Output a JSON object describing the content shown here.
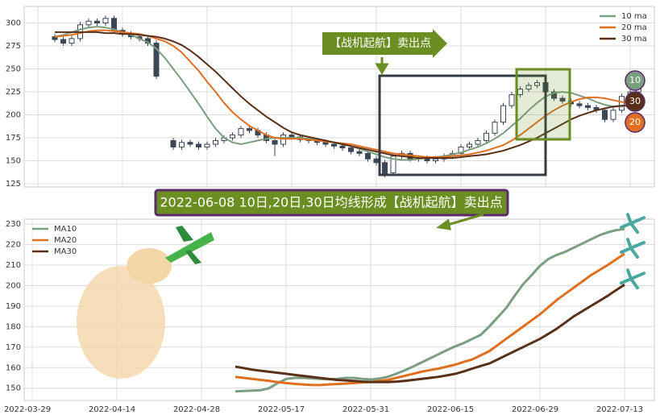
{
  "chart_data": [
    {
      "type": "candlestick",
      "open": [
        null,
        null,
        285,
        282,
        278,
        283,
        298,
        302,
        300,
        305,
        292,
        288,
        285,
        283,
        278,
        null,
        172,
        165,
        170,
        168,
        165,
        168,
        172,
        175,
        178,
        185,
        183,
        178,
        172,
        168,
        178,
        176,
        173,
        172,
        170,
        168,
        166,
        164,
        160,
        158,
        152,
        148,
        137,
        155,
        158,
        152,
        153,
        150,
        152,
        155,
        158,
        165,
        168,
        172,
        180,
        192,
        210,
        222,
        228,
        232,
        235,
        225,
        218,
        215,
        212,
        210,
        208,
        205,
        195,
        205,
        220,
        225
      ],
      "high": [
        null,
        null,
        288,
        285,
        286,
        301,
        305,
        305,
        308,
        308,
        295,
        291,
        288,
        286,
        281,
        null,
        175,
        173,
        173,
        171,
        171,
        175,
        178,
        181,
        188,
        188,
        186,
        181,
        175,
        181,
        181,
        179,
        176,
        175,
        173,
        171,
        169,
        167,
        163,
        161,
        155,
        151,
        158,
        161,
        161,
        156,
        156,
        155,
        158,
        161,
        168,
        171,
        175,
        183,
        195,
        213,
        225,
        231,
        235,
        238,
        238,
        228,
        221,
        218,
        215,
        213,
        211,
        208,
        208,
        223,
        238,
        231
      ],
      "low": [
        null,
        null,
        279,
        275,
        275,
        280,
        295,
        297,
        297,
        289,
        285,
        282,
        280,
        275,
        239,
        null,
        162,
        162,
        165,
        162,
        162,
        165,
        169,
        172,
        175,
        180,
        175,
        169,
        155,
        165,
        173,
        170,
        169,
        167,
        165,
        163,
        161,
        157,
        155,
        149,
        145,
        132,
        134,
        152,
        149,
        149,
        147,
        147,
        149,
        152,
        155,
        162,
        165,
        169,
        177,
        189,
        207,
        219,
        225,
        229,
        222,
        215,
        212,
        209,
        207,
        205,
        202,
        192,
        192,
        202,
        217,
        222
      ],
      "close": [
        null,
        null,
        282,
        278,
        283,
        298,
        302,
        300,
        305,
        292,
        288,
        285,
        283,
        278,
        242,
        null,
        165,
        170,
        168,
        165,
        168,
        172,
        175,
        178,
        185,
        183,
        178,
        172,
        168,
        178,
        176,
        173,
        172,
        170,
        168,
        166,
        164,
        160,
        158,
        152,
        148,
        135,
        155,
        158,
        152,
        153,
        150,
        152,
        155,
        158,
        165,
        168,
        172,
        180,
        192,
        210,
        222,
        228,
        232,
        235,
        225,
        218,
        215,
        212,
        210,
        208,
        205,
        195,
        205,
        220,
        225,
        228
      ],
      "candle_color": "#3b4657",
      "series": [
        {
          "name": "10 ma",
          "color": "#7a9e80",
          "values": [
            null,
            null,
            285,
            287,
            290,
            293,
            295,
            296,
            295,
            293,
            290,
            287,
            283,
            279,
            272,
            262,
            250,
            238,
            225,
            212,
            198,
            185,
            175,
            170,
            168,
            170,
            172,
            174,
            175,
            175,
            175,
            175,
            174,
            173,
            171,
            170,
            168,
            166,
            163,
            160,
            157,
            154,
            152,
            151,
            151,
            152,
            153,
            154,
            155,
            157,
            159,
            162,
            165,
            169,
            174,
            180,
            188,
            196,
            205,
            213,
            220,
            224,
            225,
            224,
            221,
            218,
            214,
            211,
            209,
            209,
            211,
            214
          ]
        },
        {
          "name": "20 ma",
          "color": "#e07020",
          "values": [
            null,
            null,
            285,
            286,
            287,
            289,
            291,
            292,
            292,
            291,
            290,
            289,
            288,
            286,
            283,
            280,
            275,
            268,
            258,
            248,
            236,
            225,
            213,
            203,
            195,
            188,
            183,
            178,
            175,
            174,
            174,
            174,
            173,
            172,
            171,
            170,
            169,
            168,
            166,
            164,
            162,
            160,
            158,
            157,
            156,
            155,
            154,
            154,
            154,
            155,
            156,
            157,
            159,
            161,
            164,
            167,
            172,
            178,
            185,
            192,
            199,
            205,
            210,
            214,
            217,
            219,
            219,
            218,
            216,
            214,
            213,
            213
          ]
        },
        {
          "name": "30 ma",
          "color": "#5a3018",
          "values": [
            null,
            null,
            290,
            290,
            290,
            290,
            290,
            290,
            289,
            289,
            288,
            288,
            287,
            286,
            285,
            283,
            280,
            276,
            270,
            263,
            255,
            247,
            238,
            229,
            220,
            212,
            205,
            198,
            192,
            186,
            181,
            178,
            176,
            174,
            172,
            170,
            168,
            166,
            164,
            162,
            160,
            158,
            156,
            155,
            154,
            153,
            153,
            153,
            153,
            153,
            154,
            155,
            156,
            157,
            159,
            161,
            164,
            167,
            171,
            175,
            180,
            185,
            190,
            195,
            199,
            202,
            205,
            207,
            209,
            210,
            210,
            211
          ]
        }
      ],
      "ylim": [
        121.5,
        318
      ],
      "yticks": [
        125,
        150,
        175,
        200,
        225,
        250,
        275,
        300
      ],
      "grid": true,
      "legend": "upper right",
      "annotation": "【战机起航】卖出点",
      "badges": [
        {
          "text": "10",
          "color": "#7a9e80"
        },
        {
          "text": "30",
          "color": "#5a3018"
        },
        {
          "text": "20",
          "color": "#e07020"
        }
      ]
    },
    {
      "type": "line",
      "categories": [
        "2022-03-29",
        null,
        null,
        null,
        null,
        null,
        null,
        null,
        null,
        null,
        "2022-04-14",
        null,
        null,
        null,
        null,
        null,
        null,
        null,
        null,
        null,
        "2022-04-28",
        null,
        null,
        null,
        null,
        null,
        null,
        null,
        null,
        null,
        "2022-05-17",
        null,
        null,
        null,
        null,
        null,
        null,
        null,
        null,
        null,
        "2022-05-31",
        null,
        null,
        null,
        null,
        null,
        null,
        null,
        null,
        null,
        "2022-06-15",
        null,
        null,
        null,
        null,
        null,
        null,
        null,
        null,
        null,
        "2022-06-29",
        null,
        null,
        null,
        null,
        null,
        null,
        null,
        null,
        null,
        "2022-07-13"
      ],
      "series": [
        {
          "name": "MA10",
          "color": "#7a9e80",
          "values": [
            null,
            null,
            null,
            null,
            null,
            null,
            null,
            null,
            null,
            null,
            null,
            null,
            null,
            null,
            null,
            null,
            null,
            null,
            null,
            null,
            null,
            null,
            null,
            null,
            148.4,
            148.6,
            148.8,
            149,
            150,
            152.5,
            154.5,
            155,
            155,
            154.8,
            154.5,
            154.3,
            154.5,
            155,
            155,
            154.5,
            154.2,
            154.7,
            155.5,
            157,
            158.6,
            160.5,
            162.5,
            164.5,
            166.5,
            168.5,
            170.4,
            172,
            174,
            176,
            180,
            184.5,
            189,
            195,
            200.6,
            205,
            209.6,
            213,
            215,
            216.5,
            218.5,
            220.5,
            222.5,
            224.5,
            226,
            227,
            227.6
          ]
        },
        {
          "name": "MA20",
          "color": "#e07020",
          "values": [
            null,
            null,
            null,
            null,
            null,
            null,
            null,
            null,
            null,
            null,
            null,
            null,
            null,
            null,
            null,
            null,
            null,
            null,
            null,
            null,
            null,
            null,
            null,
            null,
            155.5,
            155,
            154.5,
            154,
            153.5,
            153,
            152.5,
            152.1,
            151.8,
            151.6,
            151.5,
            151.8,
            152,
            152.2,
            152.5,
            152.8,
            153,
            153.5,
            154,
            155,
            156,
            157,
            158,
            158.8,
            159.5,
            160.5,
            161.5,
            162.8,
            164,
            166,
            168,
            171,
            174,
            177,
            180,
            183,
            186,
            189.5,
            193,
            196,
            199,
            202,
            205,
            207.5,
            210,
            212.8,
            215.5
          ]
        },
        {
          "name": "MA30",
          "color": "#5a3018",
          "values": [
            null,
            null,
            null,
            null,
            null,
            null,
            null,
            null,
            null,
            null,
            null,
            null,
            null,
            null,
            null,
            null,
            null,
            null,
            null,
            null,
            null,
            null,
            null,
            null,
            160.5,
            159.8,
            159,
            158.5,
            158,
            157.5,
            157,
            156.5,
            156,
            155.5,
            155,
            154.5,
            154,
            153.8,
            153.5,
            153.2,
            153,
            153,
            153,
            153.2,
            153.5,
            154,
            154.5,
            155,
            155.5,
            156.2,
            157,
            158.2,
            159.5,
            160.8,
            162,
            164,
            166,
            168,
            170,
            172,
            174,
            176.5,
            179,
            182,
            185,
            187.5,
            190,
            192.5,
            195,
            197.8,
            200.5
          ]
        }
      ],
      "ylim": [
        144,
        232.4
      ],
      "yticks": [
        150,
        160,
        170,
        180,
        190,
        200,
        210,
        220,
        230
      ],
      "grid": true,
      "legend": "upper left",
      "annotation": "2022-06-08 10日,20日,30日均线形成【战机起航】卖出点"
    }
  ]
}
